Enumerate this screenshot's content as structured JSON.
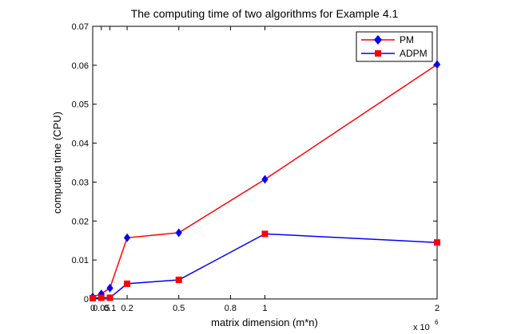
{
  "chart_data": {
    "type": "line",
    "title": "The computing time of two algorithms for Example 4.1",
    "xlabel": "matrix dimension (m*n)",
    "ylabel": "computing time (CPU)",
    "xlim": [
      0,
      2
    ],
    "ylim": [
      0,
      0.07
    ],
    "x_multiplier": "x 10^6",
    "x_multiplier_base": "x 10",
    "x_multiplier_exp": "6",
    "xticks": [
      0,
      0.05,
      0.1,
      0.2,
      0.5,
      0.8,
      1,
      2
    ],
    "xtick_labels": [
      "0",
      "0.05",
      "0.1",
      "0.2",
      "0.5",
      "0.8",
      "1",
      "2"
    ],
    "yticks": [
      0,
      0.01,
      0.02,
      0.03,
      0.04,
      0.05,
      0.06,
      0.07
    ],
    "ytick_labels": [
      "0",
      "0.01",
      "0.02",
      "0.03",
      "0.04",
      "0.05",
      "0.06",
      "0.07"
    ],
    "grid": false,
    "legend_position": "top-right",
    "x": [
      0,
      0.05,
      0.1,
      0.2,
      0.5,
      1,
      2
    ],
    "series": [
      {
        "name": "PM",
        "color": "#ff0000",
        "marker": "diamond",
        "marker_color": "#0000ff",
        "values": [
          0.0005,
          0.0013,
          0.0028,
          0.0157,
          0.017,
          0.0307,
          0.0602
        ]
      },
      {
        "name": "ADPM",
        "color": "#0000ff",
        "marker": "square",
        "marker_color": "#ff0000",
        "values": [
          0.0002,
          0.0003,
          0.0003,
          0.0039,
          0.0049,
          0.0167,
          0.0145
        ]
      }
    ]
  }
}
